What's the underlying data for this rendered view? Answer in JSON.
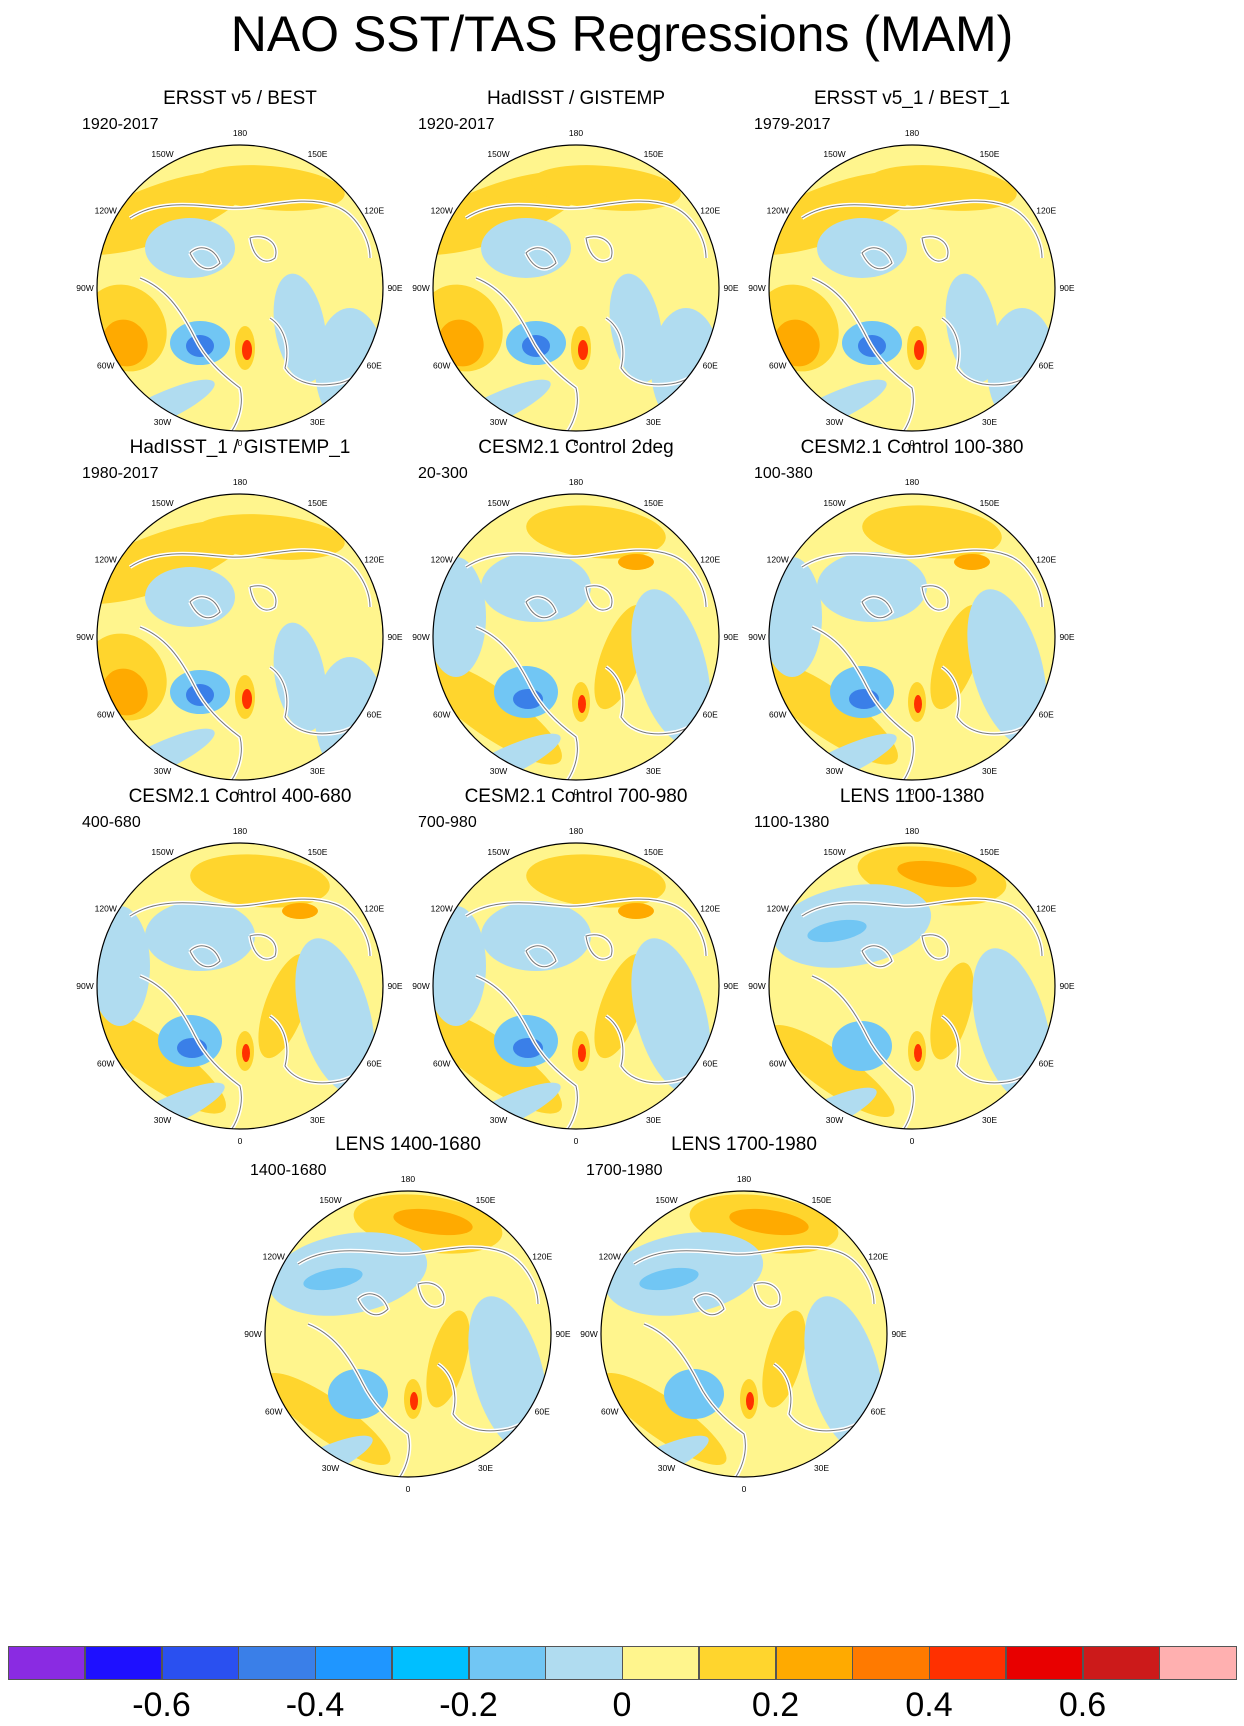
{
  "title": "NAO SST/TAS Regressions (MAM)",
  "longitude_labels": [
    "180",
    "150E",
    "120E",
    "90E",
    "60E",
    "30E",
    "0",
    "30W",
    "60W",
    "90W",
    "120W",
    "150W"
  ],
  "panels": [
    {
      "title": "ERSST v5 / BEST",
      "period": "1920-2017"
    },
    {
      "title": "HadISST / GISTEMP",
      "period": "1920-2017"
    },
    {
      "title": "ERSST v5_1 / BEST_1",
      "period": "1979-2017"
    },
    {
      "title": "HadISST_1 / GISTEMP_1",
      "period": "1980-2017"
    },
    {
      "title": "CESM2.1 Control 2deg",
      "period": "20-300"
    },
    {
      "title": "CESM2.1 Control 100-380",
      "period": "100-380"
    },
    {
      "title": "CESM2.1 Control 400-680",
      "period": "400-680"
    },
    {
      "title": "CESM2.1 Control 700-980",
      "period": "700-980"
    },
    {
      "title": "LENS 1100-1380",
      "period": "1100-1380"
    },
    {
      "title": "LENS 1400-1680",
      "period": "1400-1680"
    },
    {
      "title": "LENS 1700-1980",
      "period": "1700-1980"
    }
  ],
  "colorbar": {
    "colors": [
      "#8a2be2",
      "#1e10ff",
      "#2a50f0",
      "#3a7fe8",
      "#1f96ff",
      "#00bfff",
      "#71c6f4",
      "#b0dcf0",
      "#fff58d",
      "#ffd52d",
      "#ffaa00",
      "#ff7a00",
      "#ff3000",
      "#e80000",
      "#cc1a1a",
      "#ffb0b0"
    ],
    "labels": [
      "-0.6",
      "-0.4",
      "-0.2",
      "0",
      "0.2",
      "0.4",
      "0.6"
    ]
  },
  "map_colors": {
    "cold_strong": "#2a50f0",
    "cold_mid": "#3a7fe8",
    "cold_weak": "#71c6f4",
    "cool": "#b0dcf0",
    "neutral_warm": "#fff58d",
    "warm": "#ffd52d",
    "warm_mid": "#ffaa00",
    "hot": "#ff3000",
    "coast": "#ffffff",
    "land_outline": "#777777"
  }
}
